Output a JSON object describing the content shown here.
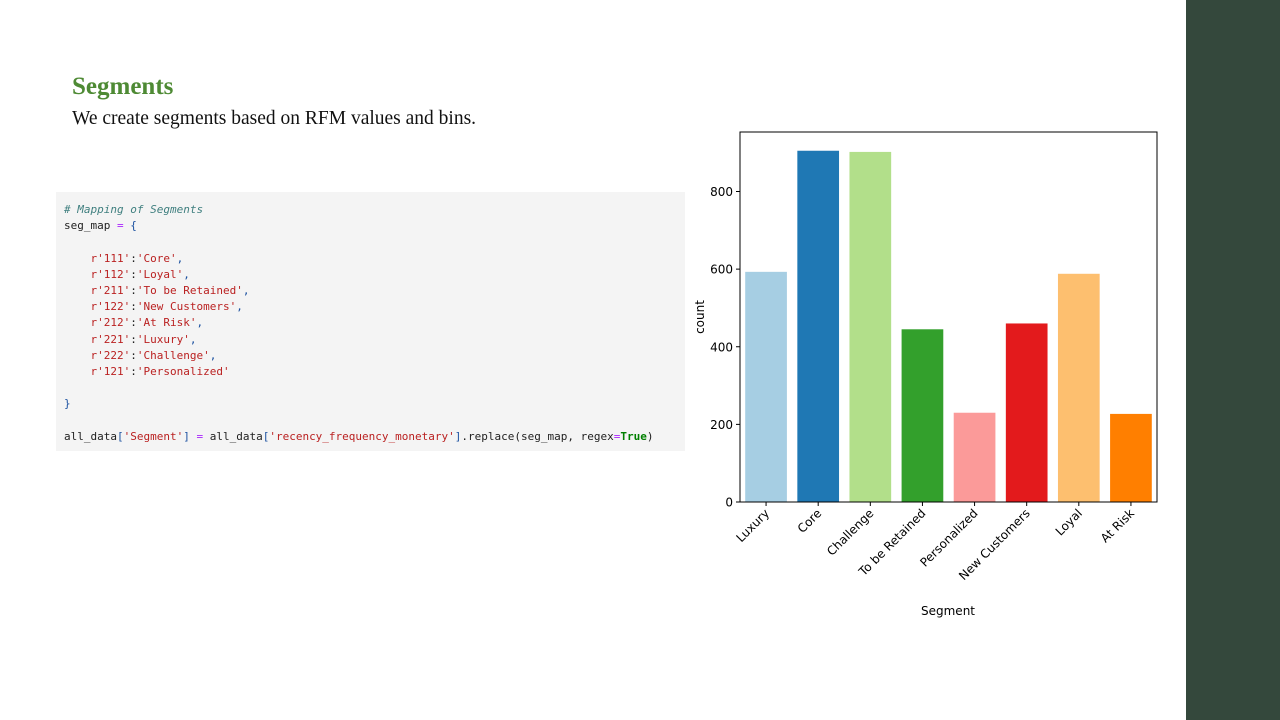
{
  "slide": {
    "title": "Segments",
    "subtitle": "We create segments based on RFM values and bins."
  },
  "code": {
    "comment": "# Mapping of Segments",
    "var_name": "seg_map",
    "map_entries": [
      {
        "key": "r'111'",
        "value": "'Core'"
      },
      {
        "key": "r'112'",
        "value": "'Loyal'"
      },
      {
        "key": "r'211'",
        "value": "'To be Retained'"
      },
      {
        "key": "r'122'",
        "value": "'New Customers'"
      },
      {
        "key": "r'212'",
        "value": "'At Risk'"
      },
      {
        "key": "r'221'",
        "value": "'Luxury'"
      },
      {
        "key": "r'222'",
        "value": "'Challenge'"
      },
      {
        "key": "r'121'",
        "value": "'Personalized'"
      }
    ],
    "close_brace": "}",
    "last_line": {
      "target": "all_data",
      "target_key": "'Segment'",
      "source": "all_data",
      "source_key": "'recency_frequency_monetary'",
      "call": ".replace(seg_map, regex",
      "true_kw": "True"
    }
  },
  "chart_data": {
    "type": "bar",
    "categories": [
      "Luxury",
      "Core",
      "Challenge",
      "To be Retained",
      "Personalized",
      "New Customers",
      "Loyal",
      "At Risk"
    ],
    "values": [
      593,
      905,
      902,
      445,
      230,
      460,
      588,
      227
    ],
    "colors": [
      "#a6cee3",
      "#1f78b4",
      "#b2df8a",
      "#33a02c",
      "#fb9a99",
      "#e31a1c",
      "#fdbf6f",
      "#ff7f00"
    ],
    "xlabel": "Segment",
    "ylabel": "count",
    "yticks": [
      0,
      200,
      400,
      600,
      800
    ],
    "ylim": [
      0,
      950
    ]
  }
}
